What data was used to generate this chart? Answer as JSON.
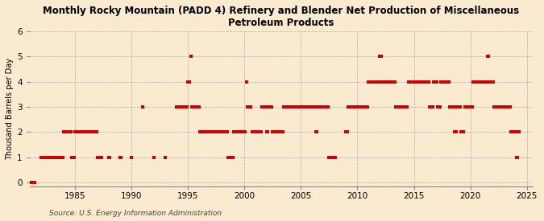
{
  "title": "Monthly Rocky Mountain (PADD 4) Refinery and Blender Net Production of Miscellaneous\nPetroleum Products",
  "ylabel": "Thousand Barrels per Day",
  "source": "Source: U.S. Energy Information Administration",
  "background_color": "#faebd0",
  "dot_color": "#cc0000",
  "grid_color": "#aaaaaa",
  "xlim": [
    1981.0,
    2025.5
  ],
  "ylim": [
    -0.15,
    6
  ],
  "yticks": [
    0,
    1,
    2,
    3,
    4,
    5,
    6
  ],
  "xticks": [
    1985,
    1990,
    1995,
    2000,
    2005,
    2010,
    2015,
    2020,
    2025
  ],
  "data": [
    [
      1981.08,
      0
    ],
    [
      1981.25,
      0
    ],
    [
      1981.42,
      0
    ],
    [
      1982.0,
      1
    ],
    [
      1982.08,
      1
    ],
    [
      1982.17,
      1
    ],
    [
      1982.25,
      1
    ],
    [
      1982.33,
      1
    ],
    [
      1982.42,
      1
    ],
    [
      1982.5,
      1
    ],
    [
      1982.58,
      1
    ],
    [
      1982.67,
      1
    ],
    [
      1982.75,
      1
    ],
    [
      1982.83,
      1
    ],
    [
      1982.92,
      1
    ],
    [
      1983.0,
      1
    ],
    [
      1983.08,
      1
    ],
    [
      1983.17,
      1
    ],
    [
      1983.25,
      1
    ],
    [
      1983.33,
      1
    ],
    [
      1983.42,
      1
    ],
    [
      1983.5,
      1
    ],
    [
      1983.58,
      1
    ],
    [
      1983.67,
      1
    ],
    [
      1983.75,
      1
    ],
    [
      1983.83,
      1
    ],
    [
      1983.92,
      1
    ],
    [
      1984.0,
      2
    ],
    [
      1984.08,
      2
    ],
    [
      1984.17,
      2
    ],
    [
      1984.25,
      2
    ],
    [
      1984.33,
      2
    ],
    [
      1984.42,
      2
    ],
    [
      1984.5,
      2
    ],
    [
      1984.58,
      2
    ],
    [
      1984.67,
      2
    ],
    [
      1984.75,
      1
    ],
    [
      1984.83,
      1
    ],
    [
      1984.92,
      1
    ],
    [
      1985.0,
      2
    ],
    [
      1985.08,
      2
    ],
    [
      1985.17,
      2
    ],
    [
      1985.25,
      2
    ],
    [
      1985.33,
      2
    ],
    [
      1985.42,
      2
    ],
    [
      1985.5,
      2
    ],
    [
      1985.58,
      2
    ],
    [
      1985.67,
      2
    ],
    [
      1985.75,
      2
    ],
    [
      1985.83,
      2
    ],
    [
      1985.92,
      2
    ],
    [
      1986.0,
      2
    ],
    [
      1986.08,
      2
    ],
    [
      1986.17,
      2
    ],
    [
      1986.25,
      2
    ],
    [
      1986.33,
      2
    ],
    [
      1986.42,
      2
    ],
    [
      1986.5,
      2
    ],
    [
      1986.58,
      2
    ],
    [
      1986.67,
      2
    ],
    [
      1986.75,
      2
    ],
    [
      1986.83,
      2
    ],
    [
      1986.92,
      2
    ],
    [
      1987.0,
      1
    ],
    [
      1987.08,
      1
    ],
    [
      1987.17,
      1
    ],
    [
      1987.25,
      1
    ],
    [
      1987.33,
      1
    ],
    [
      1988.0,
      1
    ],
    [
      1988.08,
      1
    ],
    [
      1989.0,
      1
    ],
    [
      1989.08,
      1
    ],
    [
      1990.0,
      1
    ],
    [
      1991.0,
      3
    ],
    [
      1992.0,
      1
    ],
    [
      1993.0,
      1
    ],
    [
      1994.0,
      3
    ],
    [
      1994.08,
      3
    ],
    [
      1994.17,
      3
    ],
    [
      1994.25,
      3
    ],
    [
      1994.33,
      3
    ],
    [
      1994.42,
      3
    ],
    [
      1994.5,
      3
    ],
    [
      1994.58,
      3
    ],
    [
      1994.67,
      3
    ],
    [
      1994.75,
      3
    ],
    [
      1994.83,
      3
    ],
    [
      1994.92,
      3
    ],
    [
      1995.0,
      4
    ],
    [
      1995.08,
      4
    ],
    [
      1995.17,
      4
    ],
    [
      1995.25,
      5
    ],
    [
      1995.33,
      3
    ],
    [
      1995.42,
      3
    ],
    [
      1995.5,
      3
    ],
    [
      1995.58,
      3
    ],
    [
      1995.67,
      3
    ],
    [
      1995.75,
      3
    ],
    [
      1995.83,
      3
    ],
    [
      1995.92,
      3
    ],
    [
      1996.0,
      3
    ],
    [
      1996.08,
      2
    ],
    [
      1996.17,
      2
    ],
    [
      1996.25,
      2
    ],
    [
      1996.33,
      2
    ],
    [
      1996.42,
      2
    ],
    [
      1996.5,
      2
    ],
    [
      1996.58,
      2
    ],
    [
      1996.67,
      2
    ],
    [
      1996.75,
      2
    ],
    [
      1996.83,
      2
    ],
    [
      1996.92,
      2
    ],
    [
      1997.0,
      2
    ],
    [
      1997.08,
      2
    ],
    [
      1997.17,
      2
    ],
    [
      1997.25,
      2
    ],
    [
      1997.33,
      2
    ],
    [
      1997.42,
      2
    ],
    [
      1997.5,
      2
    ],
    [
      1997.58,
      2
    ],
    [
      1997.67,
      2
    ],
    [
      1997.75,
      2
    ],
    [
      1997.83,
      2
    ],
    [
      1997.92,
      2
    ],
    [
      1998.0,
      2
    ],
    [
      1998.08,
      2
    ],
    [
      1998.17,
      2
    ],
    [
      1998.25,
      2
    ],
    [
      1998.33,
      2
    ],
    [
      1998.42,
      2
    ],
    [
      1998.5,
      2
    ],
    [
      1998.58,
      1
    ],
    [
      1998.67,
      1
    ],
    [
      1999.0,
      1
    ],
    [
      1999.08,
      2
    ],
    [
      1999.17,
      2
    ],
    [
      1999.25,
      2
    ],
    [
      1999.33,
      2
    ],
    [
      1999.42,
      2
    ],
    [
      1999.5,
      2
    ],
    [
      1999.58,
      2
    ],
    [
      1999.67,
      2
    ],
    [
      1999.75,
      2
    ],
    [
      1999.83,
      2
    ],
    [
      1999.92,
      2
    ],
    [
      2000.0,
      2
    ],
    [
      2000.08,
      2
    ],
    [
      2000.17,
      4
    ],
    [
      2000.25,
      3
    ],
    [
      2000.33,
      3
    ],
    [
      2000.42,
      3
    ],
    [
      2000.5,
      3
    ],
    [
      2000.58,
      3
    ],
    [
      2000.67,
      2
    ],
    [
      2000.75,
      2
    ],
    [
      2000.83,
      2
    ],
    [
      2000.92,
      2
    ],
    [
      2001.0,
      2
    ],
    [
      2001.08,
      2
    ],
    [
      2001.17,
      2
    ],
    [
      2001.25,
      2
    ],
    [
      2001.33,
      2
    ],
    [
      2001.42,
      2
    ],
    [
      2001.5,
      2
    ],
    [
      2001.58,
      3
    ],
    [
      2001.67,
      3
    ],
    [
      2001.75,
      3
    ],
    [
      2001.83,
      3
    ],
    [
      2001.92,
      3
    ],
    [
      2002.0,
      2
    ],
    [
      2002.08,
      2
    ],
    [
      2002.17,
      3
    ],
    [
      2002.25,
      3
    ],
    [
      2002.33,
      3
    ],
    [
      2002.42,
      3
    ],
    [
      2002.5,
      2
    ],
    [
      2002.58,
      2
    ],
    [
      2002.67,
      2
    ],
    [
      2002.75,
      2
    ],
    [
      2002.83,
      2
    ],
    [
      2002.92,
      2
    ],
    [
      2003.0,
      2
    ],
    [
      2003.08,
      2
    ],
    [
      2003.17,
      2
    ],
    [
      2003.25,
      2
    ],
    [
      2003.33,
      2
    ],
    [
      2003.42,
      2
    ],
    [
      2003.5,
      3
    ],
    [
      2003.58,
      3
    ],
    [
      2003.67,
      3
    ],
    [
      2003.75,
      3
    ],
    [
      2003.83,
      3
    ],
    [
      2003.92,
      3
    ],
    [
      2004.0,
      3
    ],
    [
      2004.08,
      3
    ],
    [
      2004.17,
      3
    ],
    [
      2004.25,
      3
    ],
    [
      2004.33,
      3
    ],
    [
      2004.42,
      3
    ],
    [
      2004.5,
      3
    ],
    [
      2004.58,
      3
    ],
    [
      2004.67,
      3
    ],
    [
      2004.75,
      3
    ],
    [
      2004.83,
      3
    ],
    [
      2004.92,
      3
    ],
    [
      2005.0,
      3
    ],
    [
      2005.08,
      3
    ],
    [
      2005.17,
      3
    ],
    [
      2005.25,
      3
    ],
    [
      2005.33,
      3
    ],
    [
      2005.42,
      3
    ],
    [
      2005.5,
      3
    ],
    [
      2005.58,
      3
    ],
    [
      2005.67,
      3
    ],
    [
      2005.75,
      3
    ],
    [
      2005.83,
      3
    ],
    [
      2005.92,
      3
    ],
    [
      2006.0,
      3
    ],
    [
      2006.08,
      3
    ],
    [
      2006.17,
      3
    ],
    [
      2006.25,
      3
    ],
    [
      2006.33,
      2
    ],
    [
      2006.42,
      2
    ],
    [
      2006.5,
      3
    ],
    [
      2006.58,
      3
    ],
    [
      2006.67,
      3
    ],
    [
      2006.75,
      3
    ],
    [
      2006.83,
      3
    ],
    [
      2006.92,
      3
    ],
    [
      2007.0,
      3
    ],
    [
      2007.08,
      3
    ],
    [
      2007.17,
      3
    ],
    [
      2007.25,
      3
    ],
    [
      2007.33,
      3
    ],
    [
      2007.42,
      3
    ],
    [
      2007.5,
      1
    ],
    [
      2007.58,
      1
    ],
    [
      2007.67,
      1
    ],
    [
      2008.0,
      1
    ],
    [
      2008.08,
      1
    ],
    [
      2009.0,
      2
    ],
    [
      2009.08,
      2
    ],
    [
      2009.17,
      3
    ],
    [
      2009.25,
      3
    ],
    [
      2009.33,
      3
    ],
    [
      2009.42,
      3
    ],
    [
      2009.5,
      3
    ],
    [
      2009.58,
      3
    ],
    [
      2009.67,
      3
    ],
    [
      2009.75,
      3
    ],
    [
      2009.83,
      3
    ],
    [
      2009.92,
      3
    ],
    [
      2010.0,
      3
    ],
    [
      2010.08,
      3
    ],
    [
      2010.17,
      3
    ],
    [
      2010.25,
      3
    ],
    [
      2010.33,
      3
    ],
    [
      2010.42,
      3
    ],
    [
      2010.5,
      3
    ],
    [
      2010.58,
      3
    ],
    [
      2010.67,
      3
    ],
    [
      2010.75,
      3
    ],
    [
      2010.83,
      3
    ],
    [
      2010.92,
      3
    ],
    [
      2011.0,
      4
    ],
    [
      2011.08,
      4
    ],
    [
      2011.17,
      4
    ],
    [
      2011.25,
      4
    ],
    [
      2011.33,
      4
    ],
    [
      2011.42,
      4
    ],
    [
      2011.5,
      4
    ],
    [
      2011.58,
      4
    ],
    [
      2011.67,
      4
    ],
    [
      2011.75,
      4
    ],
    [
      2011.83,
      4
    ],
    [
      2011.92,
      4
    ],
    [
      2012.0,
      5
    ],
    [
      2012.08,
      5
    ],
    [
      2012.17,
      4
    ],
    [
      2012.25,
      4
    ],
    [
      2012.33,
      4
    ],
    [
      2012.42,
      4
    ],
    [
      2012.5,
      4
    ],
    [
      2012.58,
      4
    ],
    [
      2012.67,
      4
    ],
    [
      2012.75,
      4
    ],
    [
      2012.83,
      4
    ],
    [
      2012.92,
      4
    ],
    [
      2013.0,
      4
    ],
    [
      2013.08,
      4
    ],
    [
      2013.17,
      4
    ],
    [
      2013.25,
      4
    ],
    [
      2013.33,
      4
    ],
    [
      2013.42,
      3
    ],
    [
      2013.5,
      3
    ],
    [
      2013.58,
      3
    ],
    [
      2013.67,
      3
    ],
    [
      2013.75,
      3
    ],
    [
      2013.83,
      3
    ],
    [
      2013.92,
      3
    ],
    [
      2014.0,
      3
    ],
    [
      2014.08,
      3
    ],
    [
      2014.17,
      3
    ],
    [
      2014.25,
      3
    ],
    [
      2014.33,
      3
    ],
    [
      2014.42,
      3
    ],
    [
      2014.5,
      4
    ],
    [
      2014.58,
      4
    ],
    [
      2014.67,
      4
    ],
    [
      2014.75,
      4
    ],
    [
      2014.83,
      4
    ],
    [
      2014.92,
      4
    ],
    [
      2015.0,
      4
    ],
    [
      2015.08,
      4
    ],
    [
      2015.17,
      4
    ],
    [
      2015.25,
      4
    ],
    [
      2015.33,
      4
    ],
    [
      2015.42,
      4
    ],
    [
      2015.5,
      4
    ],
    [
      2015.58,
      4
    ],
    [
      2015.67,
      4
    ],
    [
      2015.75,
      4
    ],
    [
      2015.83,
      4
    ],
    [
      2015.92,
      4
    ],
    [
      2016.0,
      4
    ],
    [
      2016.08,
      4
    ],
    [
      2016.17,
      4
    ],
    [
      2016.25,
      4
    ],
    [
      2016.33,
      4
    ],
    [
      2016.42,
      3
    ],
    [
      2016.5,
      3
    ],
    [
      2016.58,
      3
    ],
    [
      2016.67,
      3
    ],
    [
      2016.75,
      4
    ],
    [
      2016.83,
      4
    ],
    [
      2016.92,
      4
    ],
    [
      2017.0,
      4
    ],
    [
      2017.08,
      3
    ],
    [
      2017.17,
      3
    ],
    [
      2017.25,
      3
    ],
    [
      2017.33,
      3
    ],
    [
      2017.42,
      4
    ],
    [
      2017.5,
      4
    ],
    [
      2017.58,
      4
    ],
    [
      2017.67,
      4
    ],
    [
      2017.75,
      4
    ],
    [
      2017.83,
      4
    ],
    [
      2017.92,
      4
    ],
    [
      2018.0,
      4
    ],
    [
      2018.08,
      4
    ],
    [
      2018.17,
      3
    ],
    [
      2018.25,
      3
    ],
    [
      2018.33,
      3
    ],
    [
      2018.42,
      3
    ],
    [
      2018.5,
      3
    ],
    [
      2018.58,
      2
    ],
    [
      2018.67,
      2
    ],
    [
      2018.75,
      2
    ],
    [
      2018.83,
      3
    ],
    [
      2018.92,
      3
    ],
    [
      2019.0,
      3
    ],
    [
      2019.08,
      3
    ],
    [
      2019.17,
      2
    ],
    [
      2019.25,
      2
    ],
    [
      2019.33,
      2
    ],
    [
      2019.42,
      2
    ],
    [
      2019.5,
      3
    ],
    [
      2019.58,
      3
    ],
    [
      2019.67,
      3
    ],
    [
      2019.75,
      3
    ],
    [
      2019.83,
      3
    ],
    [
      2019.92,
      3
    ],
    [
      2020.0,
      3
    ],
    [
      2020.08,
      3
    ],
    [
      2020.17,
      3
    ],
    [
      2020.25,
      4
    ],
    [
      2020.33,
      4
    ],
    [
      2020.42,
      4
    ],
    [
      2020.5,
      4
    ],
    [
      2020.58,
      4
    ],
    [
      2020.67,
      4
    ],
    [
      2020.75,
      4
    ],
    [
      2020.83,
      4
    ],
    [
      2020.92,
      4
    ],
    [
      2021.0,
      4
    ],
    [
      2021.08,
      4
    ],
    [
      2021.17,
      4
    ],
    [
      2021.25,
      4
    ],
    [
      2021.33,
      4
    ],
    [
      2021.42,
      4
    ],
    [
      2021.5,
      5
    ],
    [
      2021.58,
      5
    ],
    [
      2021.67,
      4
    ],
    [
      2021.75,
      4
    ],
    [
      2021.83,
      4
    ],
    [
      2021.92,
      4
    ],
    [
      2022.0,
      4
    ],
    [
      2022.08,
      3
    ],
    [
      2022.17,
      3
    ],
    [
      2022.25,
      3
    ],
    [
      2022.33,
      3
    ],
    [
      2022.42,
      3
    ],
    [
      2022.5,
      3
    ],
    [
      2022.58,
      3
    ],
    [
      2022.67,
      3
    ],
    [
      2022.75,
      3
    ],
    [
      2022.83,
      3
    ],
    [
      2022.92,
      3
    ],
    [
      2023.0,
      3
    ],
    [
      2023.08,
      3
    ],
    [
      2023.17,
      3
    ],
    [
      2023.25,
      3
    ],
    [
      2023.33,
      3
    ],
    [
      2023.42,
      3
    ],
    [
      2023.5,
      3
    ],
    [
      2023.58,
      2
    ],
    [
      2023.67,
      2
    ],
    [
      2023.75,
      2
    ],
    [
      2023.83,
      2
    ],
    [
      2023.92,
      2
    ],
    [
      2024.0,
      2
    ],
    [
      2024.08,
      1
    ],
    [
      2024.17,
      1
    ],
    [
      2024.25,
      2
    ],
    [
      2024.33,
      2
    ]
  ]
}
